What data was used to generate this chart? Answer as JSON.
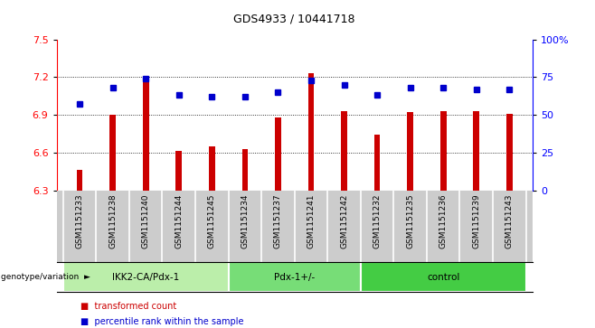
{
  "title": "GDS4933 / 10441718",
  "samples": [
    "GSM1151233",
    "GSM1151238",
    "GSM1151240",
    "GSM1151244",
    "GSM1151245",
    "GSM1151234",
    "GSM1151237",
    "GSM1151241",
    "GSM1151242",
    "GSM1151232",
    "GSM1151235",
    "GSM1151236",
    "GSM1151239",
    "GSM1151243"
  ],
  "bar_values": [
    6.46,
    6.9,
    7.19,
    6.61,
    6.65,
    6.63,
    6.88,
    7.23,
    6.93,
    6.74,
    6.92,
    6.93,
    6.93,
    6.91
  ],
  "dot_values": [
    57,
    68,
    74,
    63,
    62,
    62,
    65,
    73,
    70,
    63,
    68,
    68,
    67,
    67
  ],
  "bar_color": "#cc0000",
  "dot_color": "#0000cc",
  "ylim_left": [
    6.3,
    7.5
  ],
  "ylim_right": [
    0,
    100
  ],
  "yticks_left": [
    6.3,
    6.6,
    6.9,
    7.2,
    7.5
  ],
  "yticks_right": [
    0,
    25,
    50,
    75,
    100
  ],
  "ytick_labels_right": [
    "0",
    "25",
    "50",
    "75",
    "100%"
  ],
  "groups": [
    {
      "label": "IKK2-CA/Pdx-1",
      "start": 0,
      "end": 5
    },
    {
      "label": "Pdx-1+/-",
      "start": 5,
      "end": 9
    },
    {
      "label": "control",
      "start": 9,
      "end": 14
    }
  ],
  "group_colors": [
    "#bbeeaa",
    "#77dd77",
    "#44cc44"
  ],
  "group_row_label": "genotype/variation",
  "legend_bar_label": "transformed count",
  "legend_dot_label": "percentile rank within the sample",
  "bar_bottom": 6.3,
  "bar_width": 0.18,
  "tick_area_color": "#cccccc",
  "cell_border_color": "#aaaaaa"
}
